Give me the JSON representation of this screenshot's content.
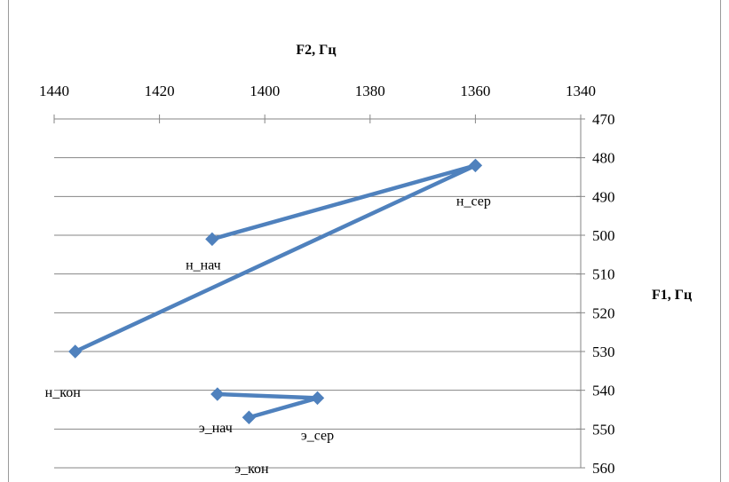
{
  "chart_data": {
    "type": "scatter",
    "x_title": "F2, Гц",
    "y_title": "F1, Гц",
    "xlim": [
      1340,
      1440
    ],
    "x_reversed": true,
    "x_axis_position": "top",
    "x_ticks": [
      "1440",
      "1420",
      "1400",
      "1380",
      "1360",
      "1340"
    ],
    "x_tick_values": [
      1440,
      1420,
      1400,
      1380,
      1360,
      1340
    ],
    "ylim": [
      470,
      560
    ],
    "y_reversed": true,
    "y_axis_position": "right",
    "y_ticks": [
      "470",
      "480",
      "490",
      "500",
      "510",
      "520",
      "530",
      "540",
      "550",
      "560"
    ],
    "y_tick_values": [
      470,
      480,
      490,
      500,
      510,
      520,
      530,
      540,
      550,
      560
    ],
    "grid": true,
    "color": "#4f81bd",
    "series": [
      {
        "points": [
          {
            "label": "н_нач",
            "x": 1410,
            "y": 501
          },
          {
            "label": "н_сер",
            "x": 1360,
            "y": 482
          },
          {
            "label": "н_кон",
            "x": 1436,
            "y": 530
          }
        ]
      },
      {
        "points": [
          {
            "label": "э_нач",
            "x": 1409,
            "y": 541
          },
          {
            "label": "э_сер",
            "x": 1390,
            "y": 542
          },
          {
            "label": "э_кон",
            "x": 1403,
            "y": 547
          }
        ]
      }
    ]
  }
}
